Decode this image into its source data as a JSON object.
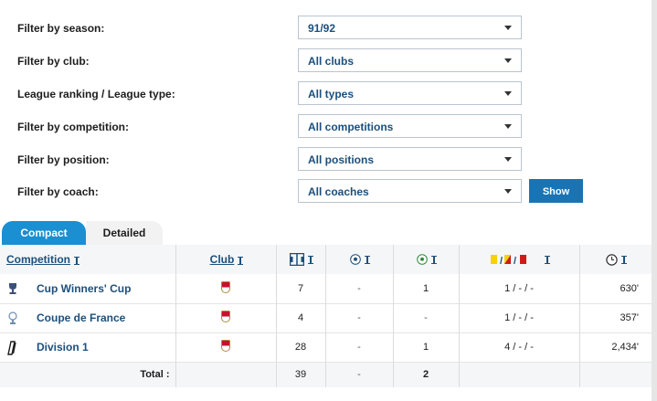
{
  "filters": [
    {
      "label": "Filter by season:",
      "value": "91/92"
    },
    {
      "label": "Filter by club:",
      "value": "All clubs"
    },
    {
      "label": "League ranking / League type:",
      "value": "All types"
    },
    {
      "label": "Filter by competition:",
      "value": "All competitions"
    },
    {
      "label": "Filter by position:",
      "value": "All positions"
    },
    {
      "label": "Filter by coach:",
      "value": "All coaches"
    }
  ],
  "show_button": "Show",
  "tabs": {
    "compact": "Compact",
    "detailed": "Detailed",
    "active": "Compact"
  },
  "table": {
    "headers": {
      "competition": "Competition",
      "club": "Club"
    },
    "header_icons": [
      "appearances-icon",
      "goals-icon",
      "assists-icon",
      "cards-icon",
      "minutes-clock-icon"
    ],
    "rows": [
      {
        "competition": "Cup Winners' Cup",
        "icon": "cup-winners-cup-icon",
        "club_icon": "monaco-crest-icon",
        "apps": "7",
        "goals": "-",
        "assists": "1",
        "cards": "1 / - / -",
        "minutes": "630'"
      },
      {
        "competition": "Coupe de France",
        "icon": "coupe-de-france-icon",
        "club_icon": "monaco-crest-icon",
        "apps": "4",
        "goals": "-",
        "assists": "-",
        "cards": "1 / - / -",
        "minutes": "357'"
      },
      {
        "competition": "Division 1",
        "icon": "ligue-1-icon",
        "club_icon": "monaco-crest-icon",
        "apps": "28",
        "goals": "-",
        "assists": "1",
        "cards": "4 / - / -",
        "minutes": "2,434'"
      }
    ],
    "total": {
      "label": "Total :",
      "apps": "39",
      "goals": "-",
      "assists": "2"
    }
  },
  "colors": {
    "accent": "#1a74b4",
    "tab_active": "#1a8fd1",
    "link": "#1c4f7c"
  }
}
